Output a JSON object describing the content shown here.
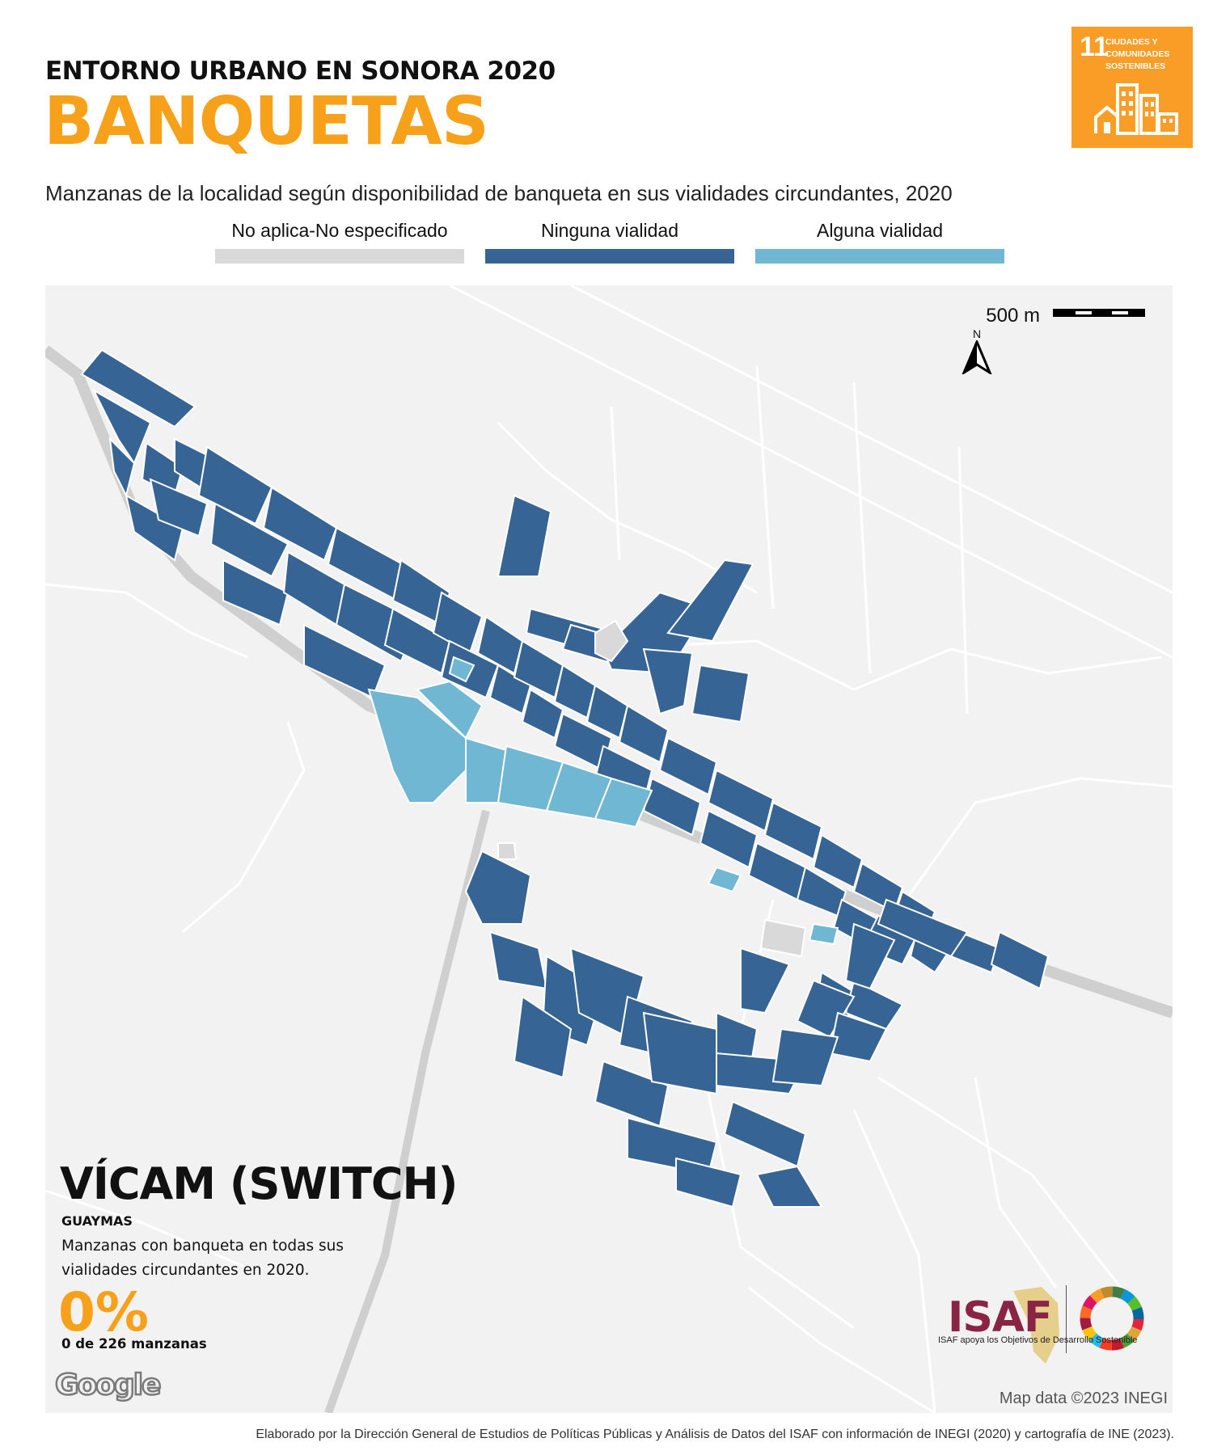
{
  "header": {
    "kicker": "ENTORNO URBANO EN SONORA 2020",
    "title": "BANQUETAS",
    "subtitle": "Manzanas de la localidad según disponibilidad de banqueta en sus vialidades circundantes, 2020"
  },
  "sdg_badge": {
    "number": "11",
    "text": "CIUDADES Y COMUNIDADES SOSTENIBLES",
    "color": "#f99d26"
  },
  "legend": [
    {
      "label": "No aplica-No especificado",
      "color": "#d9d9d9"
    },
    {
      "label": "Ninguna vialidad",
      "color": "#366494"
    },
    {
      "label": "Alguna vialidad",
      "color": "#6fb7d3"
    }
  ],
  "map": {
    "scale_label": "500 m",
    "north_label": "N",
    "locality": "VÍCAM (SWITCH)",
    "municipality": "GUAYMAS",
    "indicator_text": "Manzanas con banqueta en todas sus vialidades circundantes en 2020.",
    "percent": "0%",
    "count_text": "0 de 226 manzanas",
    "google_logo": "Google",
    "attribution": "Map data ©2023 INEGI",
    "isaf_logo_text": "ISAF",
    "isaf_caption": "ISAF apoya los Objetivos de Desarrollo Sostenible"
  },
  "footer": "Elaborado por la Dirección General de Estudios de Políticas Públicas y Análisis de Datos del ISAF con información de INEGI (2020) y cartografía de INE (2023)."
}
